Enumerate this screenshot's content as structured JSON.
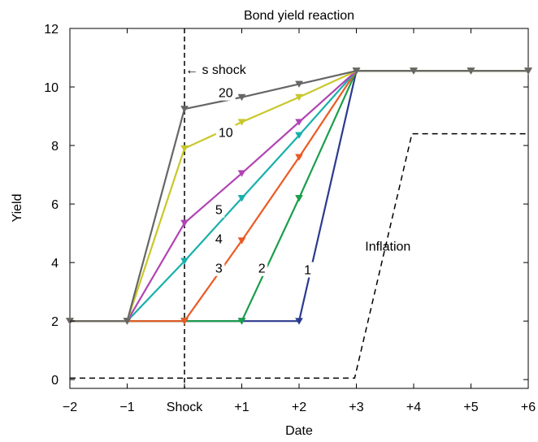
{
  "chart_data": {
    "type": "line",
    "title": "Bond yield reaction",
    "xlabel": "Date",
    "ylabel": "Yield",
    "x_ticks": [
      "−2",
      "−1",
      "Shock",
      "+1",
      "+2",
      "+3",
      "+4",
      "+5",
      "+6"
    ],
    "x_tick_values": [
      -2,
      -1,
      0,
      1,
      2,
      3,
      4,
      5,
      6
    ],
    "xlim": [
      -2,
      6
    ],
    "ylim": [
      -0.3,
      12
    ],
    "y_ticks": [
      0,
      2,
      4,
      6,
      8,
      10,
      12
    ],
    "grid": false,
    "series": [
      {
        "name": "1",
        "color": "#2b3a8f",
        "x": [
          -2,
          -1,
          0,
          1,
          2,
          3,
          4,
          5,
          6
        ],
        "y": [
          2,
          2,
          2,
          2,
          2,
          10.55,
          10.55,
          10.55,
          10.55
        ]
      },
      {
        "name": "2",
        "color": "#1a9e4b",
        "x": [
          -2,
          -1,
          0,
          1,
          2,
          3,
          4,
          5,
          6
        ],
        "y": [
          2,
          2,
          2,
          2,
          6.2,
          10.55,
          10.55,
          10.55,
          10.55
        ]
      },
      {
        "name": "3",
        "color": "#ec5a24",
        "x": [
          -2,
          -1,
          0,
          1,
          2,
          3,
          4,
          5,
          6
        ],
        "y": [
          2,
          2,
          2,
          4.75,
          7.6,
          10.55,
          10.55,
          10.55,
          10.55
        ]
      },
      {
        "name": "4",
        "color": "#17b0ac",
        "x": [
          -2,
          -1,
          0,
          1,
          2,
          3,
          4,
          5,
          6
        ],
        "y": [
          2,
          2,
          4.05,
          6.2,
          8.35,
          10.55,
          10.55,
          10.55,
          10.55
        ]
      },
      {
        "name": "5",
        "color": "#b144b3",
        "x": [
          -2,
          -1,
          0,
          1,
          2,
          3,
          4,
          5,
          6
        ],
        "y": [
          2,
          2,
          5.35,
          7.05,
          8.8,
          10.55,
          10.55,
          10.55,
          10.55
        ]
      },
      {
        "name": "10",
        "color": "#c9c72a",
        "x": [
          -2,
          -1,
          0,
          1,
          2,
          3,
          4,
          5,
          6
        ],
        "y": [
          2,
          2,
          7.9,
          8.8,
          9.65,
          10.55,
          10.55,
          10.55,
          10.55
        ]
      },
      {
        "name": "20",
        "color": "#666666",
        "x": [
          -2,
          -1,
          0,
          1,
          2,
          3,
          4,
          5,
          6
        ],
        "y": [
          2,
          2,
          9.25,
          9.65,
          10.1,
          10.55,
          10.55,
          10.55,
          10.55
        ]
      }
    ],
    "series_labels": [
      {
        "text": "1",
        "x": 2.15,
        "y": 3.6
      },
      {
        "text": "2",
        "x": 1.35,
        "y": 3.65
      },
      {
        "text": "3",
        "x": 0.6,
        "y": 3.65
      },
      {
        "text": "4",
        "x": 0.6,
        "y": 4.65
      },
      {
        "text": "5",
        "x": 0.6,
        "y": 5.65
      },
      {
        "text": "10",
        "x": 0.72,
        "y": 8.3
      },
      {
        "text": "20",
        "x": 0.72,
        "y": 9.65
      }
    ],
    "inflation": {
      "label": "Inflation",
      "x": [
        -2,
        2.97,
        3.97,
        6
      ],
      "y": [
        0.05,
        0.05,
        8.4,
        8.4
      ],
      "label_pos": {
        "x": 3.55,
        "y": 4.4
      }
    },
    "shock_line": {
      "x": 0,
      "label": "← s shock",
      "label_pos": {
        "x": 0,
        "y": 10.5
      }
    }
  }
}
